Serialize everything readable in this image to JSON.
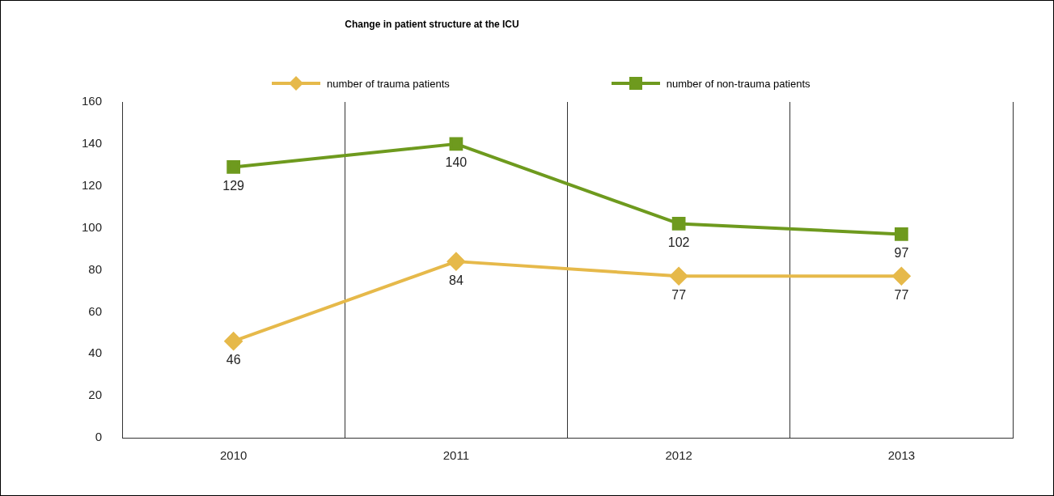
{
  "chart_data": {
    "type": "line",
    "title": "Change in patient structure at the ICU",
    "categories": [
      "2010",
      "2011",
      "2012",
      "2013"
    ],
    "series": [
      {
        "name": "number of trauma patients",
        "color": "#e6b94a",
        "marker": "diamond",
        "values": [
          46,
          84,
          77,
          77
        ]
      },
      {
        "name": "number of non-trauma patients",
        "color": "#6e9a1e",
        "marker": "square",
        "values": [
          129,
          140,
          102,
          97
        ]
      }
    ],
    "ylim": [
      0,
      160
    ],
    "yticks": [
      0,
      20,
      40,
      60,
      80,
      100,
      120,
      140,
      160
    ],
    "grid": "x",
    "legend": "top",
    "data_labels": true
  }
}
